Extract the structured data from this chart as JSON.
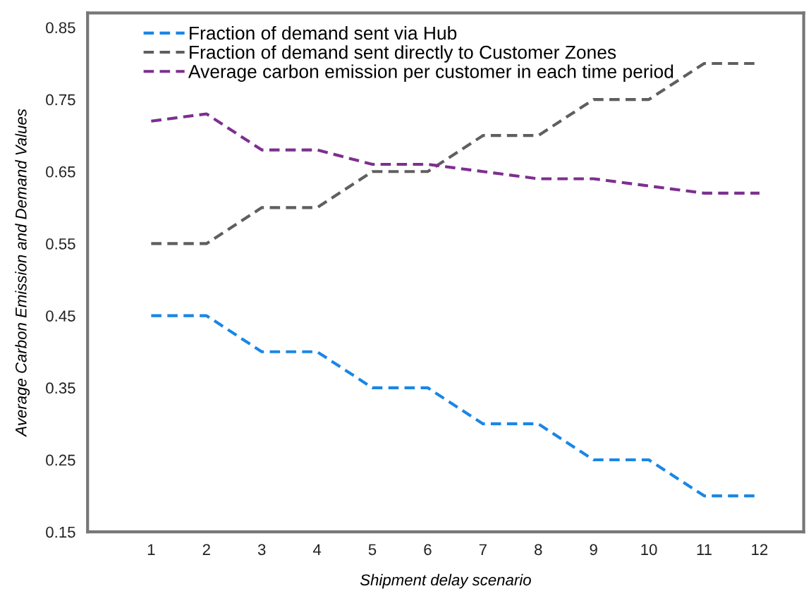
{
  "chart_data": {
    "type": "line",
    "xlabel": "Shipment delay scenario",
    "ylabel": "Average Carbon Emission and Demand Values",
    "x": [
      1,
      2,
      3,
      4,
      5,
      6,
      7,
      8,
      9,
      10,
      11,
      12
    ],
    "series": [
      {
        "name": "Fraction of demand sent via Hub",
        "color": "#1a86e6",
        "values": [
          0.45,
          0.45,
          0.4,
          0.4,
          0.35,
          0.35,
          0.3,
          0.3,
          0.25,
          0.25,
          0.2,
          0.2
        ]
      },
      {
        "name": "Fraction of demand sent directly to Customer Zones",
        "color": "#5f5f5f",
        "values": [
          0.55,
          0.55,
          0.6,
          0.6,
          0.65,
          0.65,
          0.7,
          0.7,
          0.75,
          0.75,
          0.8,
          0.8
        ]
      },
      {
        "name": "Average carbon emission per customer in each time period",
        "color": "#7d2f8f",
        "values": [
          0.72,
          0.73,
          0.68,
          0.68,
          0.66,
          0.66,
          0.65,
          0.64,
          0.64,
          0.63,
          0.62,
          0.62
        ]
      }
    ],
    "xlim": [
      -0.15,
      12.8
    ],
    "xticks": [
      1,
      2,
      3,
      4,
      5,
      6,
      7,
      8,
      9,
      10,
      11,
      12
    ],
    "ylim": [
      0.15,
      0.87
    ],
    "yticks": [
      {
        "value": 0.15,
        "label": "0.15"
      },
      {
        "value": 0.25,
        "label": "0.25"
      },
      {
        "value": 0.35,
        "label": "0.35"
      },
      {
        "value": 0.45,
        "label": "0.45"
      },
      {
        "value": 0.55,
        "label": "0.55"
      },
      {
        "value": 0.65,
        "label": "0.65"
      },
      {
        "value": 0.75,
        "label": "0.75"
      },
      {
        "value": 0.85,
        "label": "0.85"
      }
    ],
    "legend": "top left",
    "grid": false,
    "marker": "none",
    "line_style": "dashed"
  }
}
